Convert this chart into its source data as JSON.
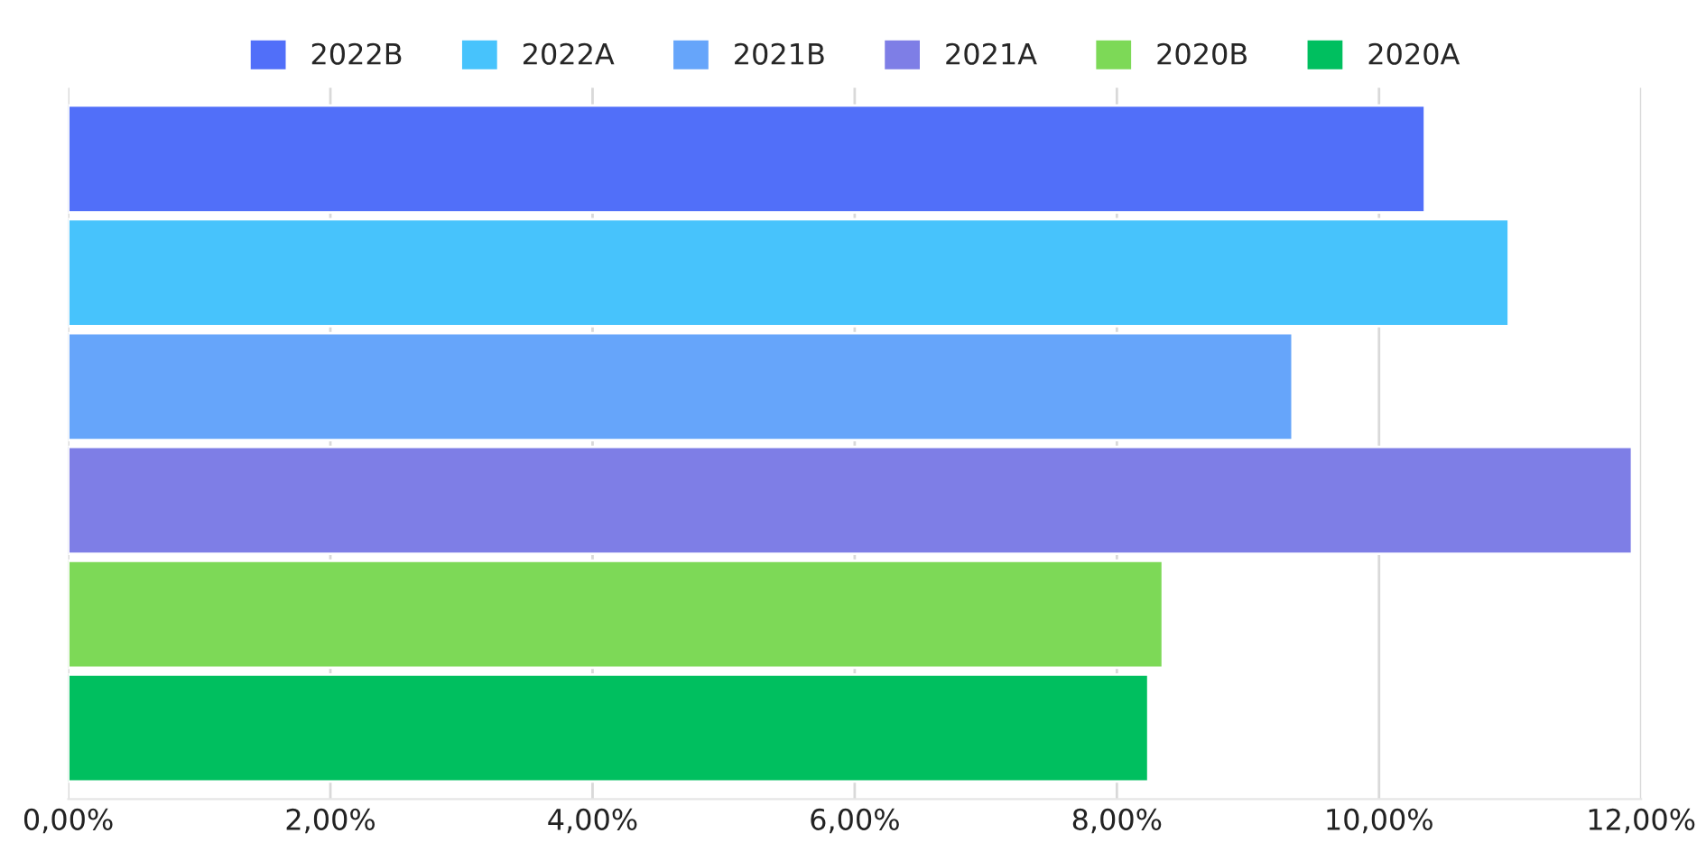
{
  "chart_data": {
    "type": "bar",
    "orientation": "horizontal",
    "categories": [
      null
    ],
    "series": [
      {
        "name": "2022B",
        "color": "#516ff9",
        "values": [
          10.35
        ]
      },
      {
        "name": "2022A",
        "color": "#47c3fc",
        "values": [
          10.99
        ]
      },
      {
        "name": "2021B",
        "color": "#66a5fa",
        "values": [
          9.34
        ]
      },
      {
        "name": "2021A",
        "color": "#7e7ee6",
        "values": [
          11.93
        ]
      },
      {
        "name": "2020B",
        "color": "#7dd957",
        "values": [
          8.35
        ]
      },
      {
        "name": "2020A",
        "color": "#00bf5f",
        "values": [
          8.24
        ]
      }
    ],
    "xlim": [
      0,
      12
    ],
    "xticks": [
      {
        "value": 0,
        "label": "0,00%"
      },
      {
        "value": 2,
        "label": "2,00%"
      },
      {
        "value": 4,
        "label": "4,00%"
      },
      {
        "value": 6,
        "label": "6,00%"
      },
      {
        "value": 8,
        "label": "8,00%"
      },
      {
        "value": 10,
        "label": "10,00%"
      },
      {
        "value": 12,
        "label": "12,00%"
      }
    ],
    "grid": "x",
    "legend": "top"
  }
}
